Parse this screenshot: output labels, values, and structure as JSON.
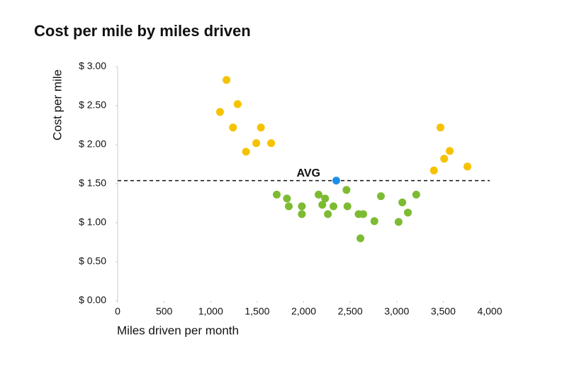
{
  "chart_data": {
    "type": "scatter",
    "title": "Cost per mile by miles driven",
    "x_label": "Miles driven per month",
    "y_label": "Cost per mile",
    "xlim": [
      0,
      4000
    ],
    "ylim": [
      0,
      3
    ],
    "xticks": [
      0,
      500,
      {
        "value": 1000,
        "label": "1,000"
      },
      {
        "value": 1500,
        "label": "1,500"
      },
      {
        "value": 2000,
        "label": "2,000"
      },
      {
        "value": 2500,
        "label": "2,500"
      },
      {
        "value": 3000,
        "label": "3,000"
      },
      {
        "value": 3500,
        "label": "3,500"
      },
      {
        "value": 4000,
        "label": "4,000"
      }
    ],
    "yticks": [
      {
        "value": 0,
        "label": "$ 0.00"
      },
      {
        "value": 0.5,
        "label": "$ 0.50"
      },
      {
        "value": 1,
        "label": "$ 1.00"
      },
      {
        "value": 1.5,
        "label": "$ 1.50"
      },
      {
        "value": 2,
        "label": "$ 2.00"
      },
      {
        "value": 2.5,
        "label": "$ 2.50"
      },
      {
        "value": 3,
        "label": "$ 3.00"
      }
    ],
    "series": [
      {
        "color": "#f5c200",
        "x": [
          1100,
          1170,
          1240,
          1290,
          1380,
          1490,
          1540,
          1650,
          3400,
          3470,
          3510,
          3570,
          3760
        ],
        "values": [
          2.42,
          2.83,
          2.22,
          2.52,
          1.91,
          2.02,
          2.22,
          2.02,
          1.67,
          2.22,
          1.82,
          1.92,
          1.72
        ]
      },
      {
        "color": "#7dbb32",
        "x": [
          1710,
          1820,
          1840,
          1980,
          1980,
          2160,
          2200,
          2230,
          2260,
          2320,
          2460,
          2470,
          2590,
          2640,
          2610,
          2760,
          2830,
          3020,
          3060,
          3120,
          3210
        ],
        "values": [
          1.36,
          1.31,
          1.21,
          1.21,
          1.11,
          1.36,
          1.23,
          1.31,
          1.11,
          1.21,
          1.42,
          1.21,
          1.11,
          1.11,
          0.8,
          1.02,
          1.34,
          1.01,
          1.26,
          1.13,
          1.36
        ]
      },
      {
        "color": "#1e8fe8",
        "x": [
          2350
        ],
        "values": [
          1.54
        ]
      }
    ],
    "annotations": [
      {
        "label": "AVG",
        "y": 1.54
      }
    ]
  }
}
